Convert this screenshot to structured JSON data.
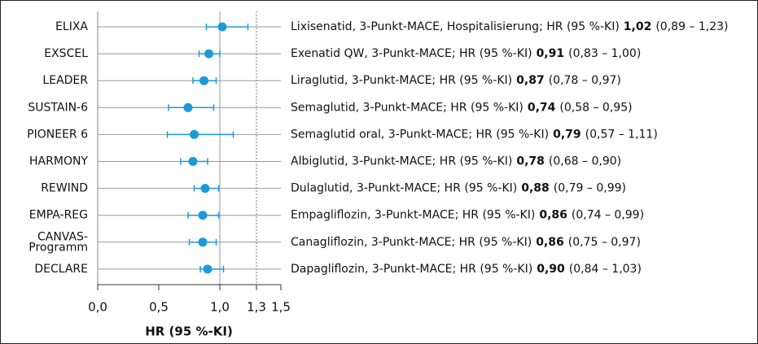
{
  "chart_data": {
    "type": "forest",
    "categories": [
      "ELIXA",
      "EXSCEL",
      "LEADER",
      "SUSTAIN-6",
      "PIONEER 6",
      "HARMONY",
      "REWIND",
      "EMPA-REG",
      "CANVAS-\nProgramm",
      "DECLARE"
    ],
    "descriptions": [
      "Lixisenatid, 3-Punkt-MACE, Hospitalisierung; HR (95 %-KI)",
      "Exenatid QW, 3-Punkt-MACE; HR (95 %-KI)",
      "Liraglutid, 3-Punkt-MACE; HR (95 %-KI)",
      "Semaglutid, 3-Punkt-MACE; HR (95 %-KI)",
      "Semaglutid oral, 3-Punkt-MACE; HR (95 %-KI)",
      "Albiglutid, 3-Punkt-MACE; HR (95 %-KI)",
      "Dulaglutid, 3-Punkt-MACE; HR (95 %-KI)",
      "Empagliflozin, 3-Punkt-MACE; HR (95 %-KI)",
      "Canagliflozin, 3-Punkt-MACE; HR (95 %-KI)",
      "Dapagliflozin, 3-Punkt-MACE; HR (95 %-KI)"
    ],
    "values": [
      1.02,
      0.91,
      0.87,
      0.74,
      0.79,
      0.78,
      0.88,
      0.86,
      0.86,
      0.9
    ],
    "value_labels": [
      "1,02",
      "0,91",
      "0,87",
      "0,74",
      "0,79",
      "0,78",
      "0,88",
      "0,86",
      "0,86",
      "0,90"
    ],
    "lower": [
      0.89,
      0.83,
      0.78,
      0.58,
      0.57,
      0.68,
      0.79,
      0.74,
      0.75,
      0.84
    ],
    "upper": [
      1.23,
      1.0,
      0.97,
      0.95,
      1.11,
      0.9,
      0.99,
      0.99,
      0.97,
      1.03
    ],
    "ci_labels": [
      "(0,89 – 1,23)",
      "(0,83 – 1,00)",
      "(0,78 – 0,97)",
      "(0,58 – 0,95)",
      "(0,57 – 1,11)",
      "(0,68 – 0,90)",
      "(0,79 – 0,99)",
      "(0,74 – 0,99)",
      "(0,75 – 0,97)",
      "(0,84 – 1,03)"
    ],
    "color": "#1a9bd7",
    "xlabel": "HR (95 %-KI)",
    "xlim": [
      0,
      1.5
    ],
    "xticks": [
      {
        "value": 0,
        "label": "0,0"
      },
      {
        "value": 0.5,
        "label": "0,5"
      },
      {
        "value": 1,
        "label": "1,0"
      },
      {
        "value": 1.3,
        "label": "1,3"
      },
      {
        "value": 1.5,
        "label": "1,5"
      }
    ],
    "null_line": 1,
    "reference_line": 1.3
  }
}
